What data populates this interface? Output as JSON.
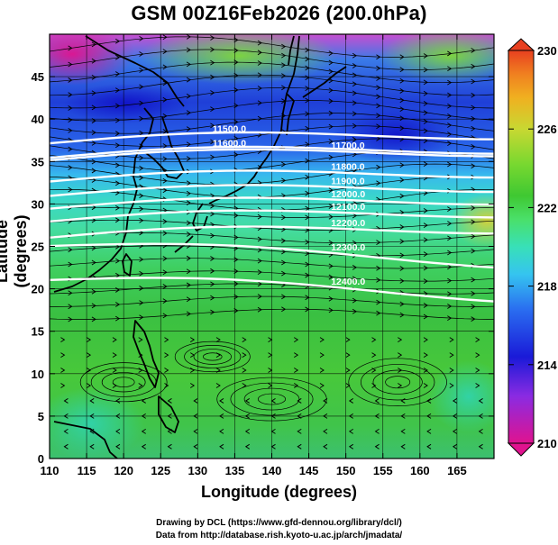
{
  "title": "GSM 00Z16Feb2026 (200.0hPa)",
  "x_axis": {
    "label": "Longitude (degrees)",
    "range": [
      110,
      170
    ],
    "ticks": [
      110,
      115,
      120,
      125,
      130,
      135,
      140,
      145,
      150,
      155,
      160,
      165
    ]
  },
  "y_axis": {
    "label": "Latitude  (degrees)",
    "range": [
      0,
      50
    ],
    "ticks": [
      0,
      5,
      10,
      15,
      20,
      25,
      30,
      35,
      40,
      45
    ]
  },
  "colorbar": {
    "label_values": [
      210,
      214,
      218,
      222,
      226,
      230
    ],
    "range": [
      210,
      230
    ],
    "colors": [
      "#e0138f",
      "#8a2be2",
      "#1a1ad8",
      "#2a6df0",
      "#35c4f0",
      "#38e0b8",
      "#4ae06a",
      "#3fc832",
      "#78d830",
      "#c8d832",
      "#f0b020",
      "#f08020",
      "#e84020"
    ]
  },
  "contours": [
    {
      "label": "11500.0",
      "lon": 132,
      "lat": 38.5
    },
    {
      "label": "11600.0",
      "lon": 132,
      "lat": 36.8
    },
    {
      "label": "11700.0",
      "lon": 148,
      "lat": 36.5
    },
    {
      "label": "11800.0",
      "lon": 148,
      "lat": 34.0
    },
    {
      "label": "11900.0",
      "lon": 148,
      "lat": 32.3
    },
    {
      "label": "12000.0",
      "lon": 148,
      "lat": 30.8
    },
    {
      "label": "12100.0",
      "lon": 148,
      "lat": 29.3
    },
    {
      "label": "12200.0",
      "lon": 148,
      "lat": 27.4
    },
    {
      "label": "12300.0",
      "lon": 148,
      "lat": 24.5
    },
    {
      "label": "12400.0",
      "lon": 148,
      "lat": 20.5
    }
  ],
  "credits": [
    "Drawing by DCL (https://www.gfd-dennou.org/library/dcl/)",
    "Data from http://database.rish.kyoto-u.ac.jp/arch/jmadata/"
  ]
}
